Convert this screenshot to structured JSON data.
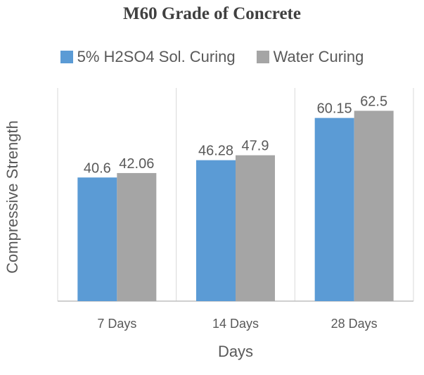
{
  "chart_data": {
    "type": "bar",
    "title": "M60 Grade of Concrete",
    "xlabel": "Days",
    "ylabel": "Compressive Strength",
    "categories": [
      "7 Days",
      "14 Days",
      "28 Days"
    ],
    "series": [
      {
        "name": "5% H2SO4 Sol. Curing",
        "values": [
          40.6,
          46.28,
          60.15
        ],
        "color": "#5b9bd5"
      },
      {
        "name": "Water Curing",
        "values": [
          42.06,
          47.9,
          62.5
        ],
        "color": "#a5a5a5"
      }
    ],
    "ylim": [
      0,
      70
    ],
    "grid": "vertical separators",
    "legend": "top"
  }
}
